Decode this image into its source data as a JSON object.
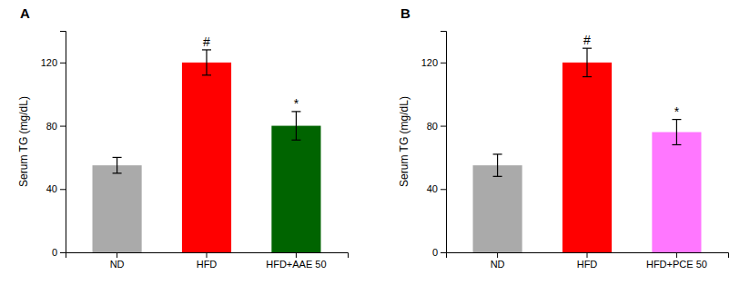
{
  "chart_data": [
    {
      "type": "bar",
      "title": "A",
      "categories": [
        "ND",
        "HFD",
        "HFD+AAE 50"
      ],
      "values": [
        55,
        120,
        80
      ],
      "errors": [
        5,
        8,
        9
      ],
      "colors": [
        "#aaaaaa",
        "#ff0000",
        "#006400"
      ],
      "annotations": [
        null,
        "#",
        "*"
      ],
      "ylabel": "Serum TG (mg/dL)",
      "ylim": [
        0,
        140
      ],
      "yticks": [
        0,
        40,
        80,
        120
      ]
    },
    {
      "type": "bar",
      "title": "B",
      "categories": [
        "ND",
        "HFD",
        "HFD+PCE 50"
      ],
      "values": [
        55,
        120,
        76
      ],
      "errors": [
        7,
        9,
        8
      ],
      "colors": [
        "#aaaaaa",
        "#ff0000",
        "#ff77ff"
      ],
      "annotations": [
        null,
        "#",
        "*"
      ],
      "ylabel": "Serum TG (mg/dL)",
      "ylim": [
        0,
        140
      ],
      "yticks": [
        0,
        40,
        80,
        120
      ]
    }
  ]
}
